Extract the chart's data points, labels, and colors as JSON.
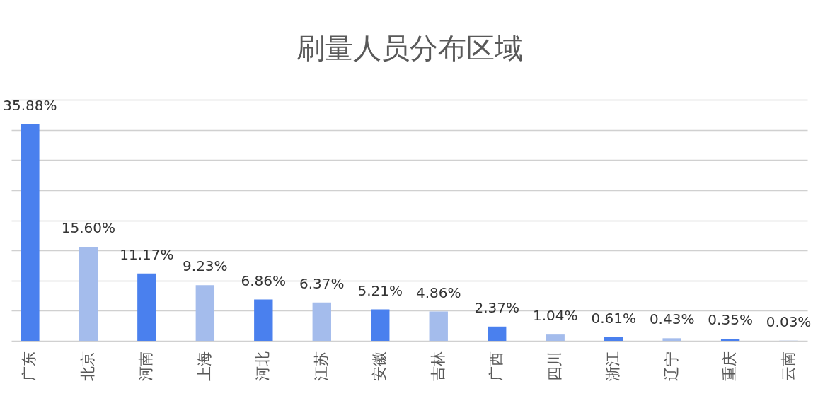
{
  "chart_data": {
    "type": "bar",
    "title": "刷量人员分布区域",
    "categories": [
      "广东",
      "北京",
      "河南",
      "上海",
      "河北",
      "江苏",
      "安徽",
      "吉林",
      "广西",
      "四川",
      "浙江",
      "辽宁",
      "重庆",
      "云南"
    ],
    "values": [
      35.88,
      15.6,
      11.17,
      9.23,
      6.86,
      6.37,
      5.21,
      4.86,
      2.37,
      1.04,
      0.61,
      0.43,
      0.35,
      0.03
    ],
    "value_labels": [
      "35.88%",
      "15.60%",
      "11.17%",
      "9.23%",
      "6.86%",
      "6.37%",
      "5.21%",
      "4.86%",
      "2.37%",
      "1.04%",
      "0.61%",
      "0.43%",
      "0.35%",
      "0.03%"
    ],
    "colors": [
      "#4a80ee",
      "#a4bcec",
      "#4a80ee",
      "#a4bcec",
      "#4a80ee",
      "#a4bcec",
      "#4a80ee",
      "#a4bcec",
      "#4a80ee",
      "#a4bcec",
      "#4a80ee",
      "#a4bcec",
      "#4a80ee",
      "#a4bcec"
    ],
    "ylim": [
      0,
      40
    ],
    "yticks": [
      {
        "value": 0,
        "label": null
      },
      {
        "value": 5,
        "label": null
      },
      {
        "value": 10,
        "label": null
      },
      {
        "value": 15,
        "label": null
      },
      {
        "value": 20,
        "label": null
      },
      {
        "value": 25,
        "label": null
      },
      {
        "value": 30,
        "label": null
      },
      {
        "value": 35,
        "label": null
      },
      {
        "value": 40,
        "label": null
      }
    ],
    "grid": "y",
    "tick_labels": "x"
  }
}
